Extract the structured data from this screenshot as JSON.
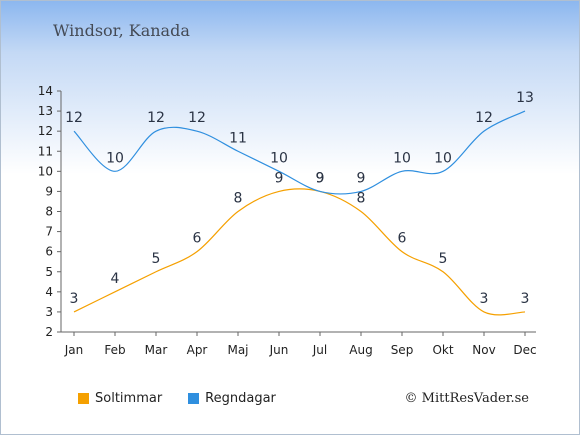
{
  "title": "Windsor, Kanada",
  "credit": "© MittResVader.se",
  "chart_data": {
    "type": "line",
    "categories": [
      "Jan",
      "Feb",
      "Mar",
      "Apr",
      "Maj",
      "Jun",
      "Jul",
      "Aug",
      "Sep",
      "Okt",
      "Nov",
      "Dec"
    ],
    "y_ticks": [
      2,
      3,
      4,
      5,
      6,
      7,
      8,
      9,
      10,
      11,
      12,
      13,
      14
    ],
    "ylim": [
      2,
      14
    ],
    "grid": false,
    "legend": "bottom-left",
    "series": [
      {
        "name": "Soltimmar",
        "color": "#f5a000",
        "values": [
          3,
          4,
          5,
          6,
          8,
          9,
          9,
          8,
          6,
          5,
          3,
          3
        ]
      },
      {
        "name": "Regndagar",
        "color": "#2f8fdf",
        "values": [
          12,
          10,
          12,
          12,
          11,
          10,
          9,
          9,
          10,
          10,
          12,
          13
        ]
      }
    ]
  }
}
